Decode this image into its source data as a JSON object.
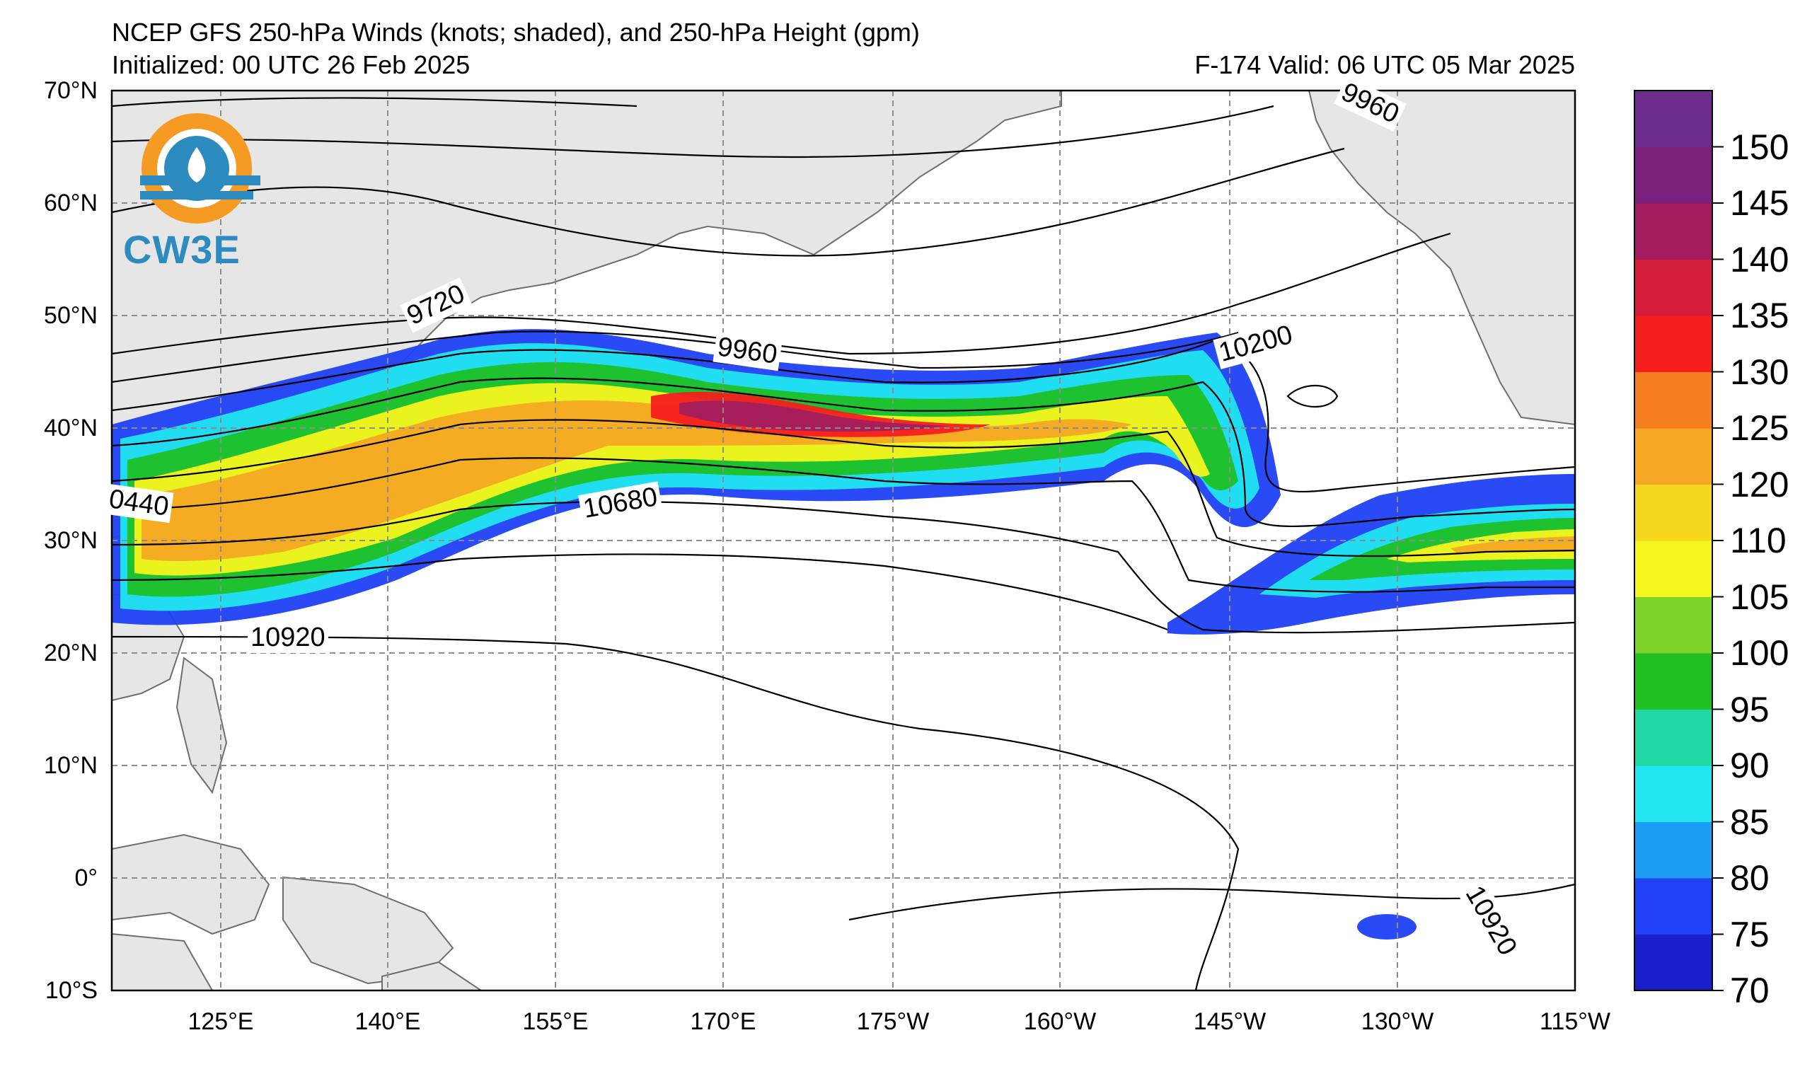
{
  "header": {
    "title": "NCEP GFS 250-hPa Winds (knots; shaded), and 250-hPa Height (gpm)",
    "initialized": "Initialized: 00 UTC 26 Feb 2025",
    "valid": "F-174  Valid: 06 UTC 05 Mar 2025"
  },
  "logo": {
    "text": "CW3E",
    "icon": "cw3e-logo-icon"
  },
  "map": {
    "projection": "cylindrical-equidistant",
    "lat_range": [
      "10°S",
      "70°N"
    ],
    "lon_range": [
      "115°E",
      "115°W"
    ],
    "grid": true,
    "land_color": "#e6e6e6",
    "ocean_color": "#ffffff",
    "lat_labels": [
      "70°N",
      "60°N",
      "50°N",
      "40°N",
      "30°N",
      "20°N",
      "10°N",
      "0°",
      "10°S"
    ],
    "lon_labels": [
      "125°E",
      "140°E",
      "155°E",
      "170°E",
      "175°W",
      "160°W",
      "145°W",
      "130°W",
      "115°W"
    ],
    "contour_labels": [
      "9720",
      "9960",
      "9960",
      "10200",
      "0440",
      "10680",
      "10920",
      "10920"
    ]
  },
  "colorbar": {
    "units": "knots",
    "labels": [
      "150",
      "145",
      "140",
      "135",
      "130",
      "125",
      "120",
      "110",
      "105",
      "100",
      "95",
      "90",
      "85",
      "80",
      "75",
      "70"
    ],
    "colors_bottom_to_top": [
      "#1a1fcc",
      "#1f40f5",
      "#1a9cf2",
      "#21e5f0",
      "#21d8a5",
      "#1fbf24",
      "#7cd42a",
      "#f5f51e",
      "#f5d71d",
      "#f5a623",
      "#f57f1f",
      "#f51e1e",
      "#d41e3c",
      "#a31d5e",
      "#7a1f7a",
      "#6b2c8c"
    ]
  }
}
